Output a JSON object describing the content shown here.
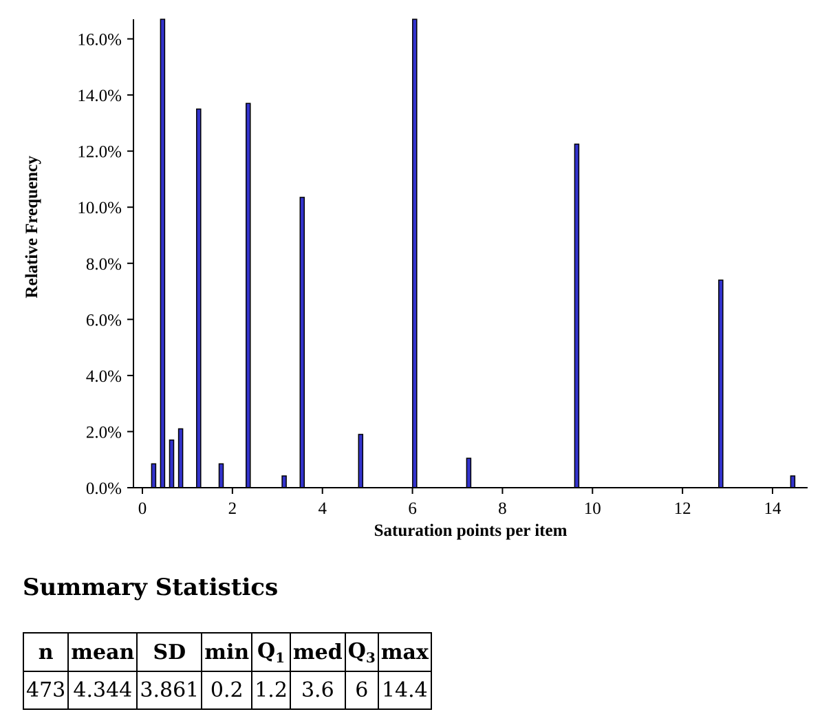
{
  "chart_data": {
    "type": "bar",
    "xlabel": "Saturation points per item",
    "ylabel": "Relative Frequency",
    "xlim": [
      -0.2,
      14.8
    ],
    "ylim": [
      0,
      16.7
    ],
    "xticks": [
      0,
      2,
      4,
      6,
      8,
      10,
      12,
      14
    ],
    "yticks": [
      "0.0%",
      "2.0%",
      "4.0%",
      "6.0%",
      "8.0%",
      "10.0%",
      "12.0%",
      "14.0%",
      "16.0%"
    ],
    "ytick_values": [
      0,
      2,
      4,
      6,
      8,
      10,
      12,
      14,
      16
    ],
    "bar_color": "#3333cc",
    "x": [
      0.25,
      0.45,
      0.65,
      0.85,
      1.25,
      1.75,
      2.35,
      3.15,
      3.55,
      4.85,
      6.05,
      7.25,
      9.65,
      12.85,
      14.45
    ],
    "values": [
      0.85,
      16.7,
      1.7,
      2.1,
      13.5,
      0.85,
      13.7,
      0.42,
      10.35,
      1.9,
      16.7,
      1.05,
      12.25,
      7.4,
      0.42
    ],
    "grid": false
  },
  "summary": {
    "title": "Summary Statistics",
    "headers": {
      "n": "n",
      "mean": "mean",
      "sd": "SD",
      "min": "min",
      "q1_base": "Q",
      "q1_sub": "1",
      "med": "med",
      "q3_base": "Q",
      "q3_sub": "3",
      "max": "max"
    },
    "values": {
      "n": "473",
      "mean": "4.344",
      "sd": "3.861",
      "min": "0.2",
      "q1": "1.2",
      "med": "3.6",
      "q3": "6",
      "max": "14.4"
    }
  }
}
